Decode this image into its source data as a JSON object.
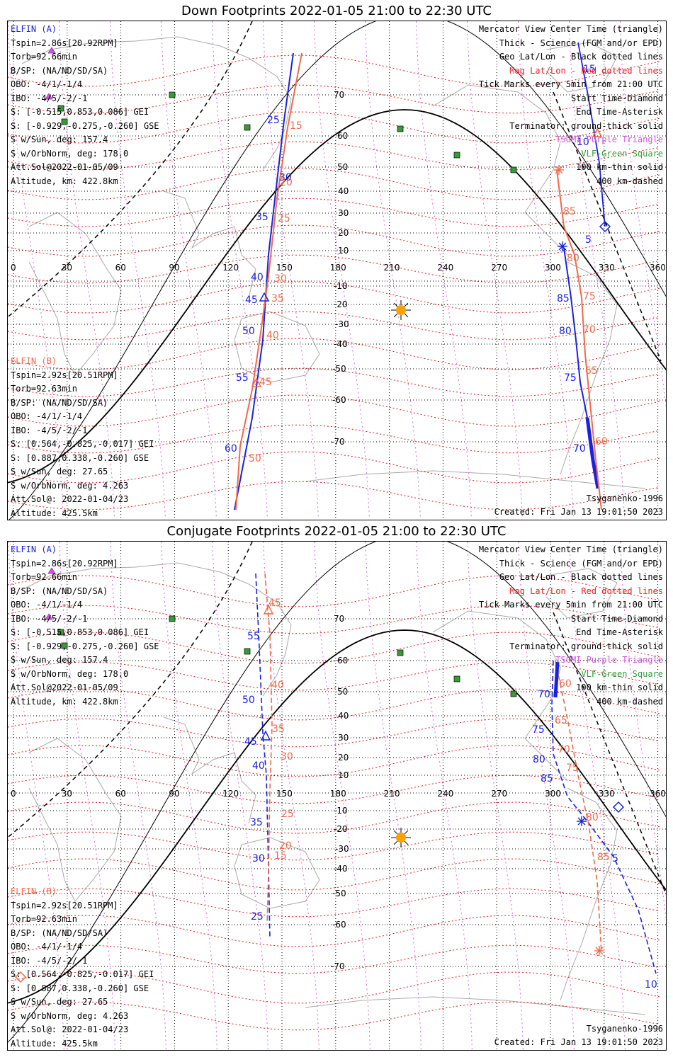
{
  "panels": [
    {
      "title": "Down Footprints 2022-01-05 21:00 to 22:30 UTC",
      "elfin_a": {
        "label": "ELFIN (A)",
        "lines": [
          "Tspin=2.86s[20.92RPM]",
          "Torb=92.66min",
          "B/SP: (NA/ND/SD/SA)",
          "OBO: -4/1/-1/4",
          "IBO: -4/5/-2/-1",
          "S: [-0.515,0.853,0.086] GEI",
          "S: [-0.929,-0.275,-0.260] GSE",
          "S w/Sun, deg: 157.4",
          "S w/OrbNorm, deg: 178.0",
          "Att.Sol@2022-01-05/09",
          "Altitude, km: 422.8km"
        ]
      },
      "elfin_b": {
        "label": "ELFIN (B)",
        "lines": [
          "Tspin=2.92s[20.51RPM]",
          "Torb=92.63min",
          "B/SP: (NA/ND/SD/SA)",
          "OBO: -4/1/-1/4",
          "IBO: -4/5/-2/-1",
          "S: [0.564,-0.825,-0.017] GEI",
          "S: [0.887,0.338,-0.260] GSE",
          "S w/Sun, deg: 27.65",
          "S w/OrbNorm, deg: 4.263",
          "Att.Sol@: 2022-01-04/23",
          "Altitude: 425.5km"
        ]
      },
      "model": "Tsyganenko-1996",
      "created": "Created: Fri Jan 13 19:01:50 2023"
    },
    {
      "title": "Conjugate Footprints 2022-01-05 21:00 to 22:30 UTC",
      "elfin_a": {
        "label": "ELFIN (A)",
        "lines": [
          "Tspin=2.86s[20.92RPM]",
          "Torb=92.66min",
          "B/SP: (NA/ND/SD/SA)",
          "OBO: -4/1/-1/4",
          "IBO: -4/5/-2/-1",
          "S: [-0.515,0.853,0.086] GEI",
          "S: [-0.929,-0.275,-0.260] GSE",
          "S w/Sun, deg: 157.4",
          "S w/OrbNorm, deg: 178.0",
          "Att.Sol@2022-01-05/09",
          "Altitude, km: 422.8km"
        ]
      },
      "elfin_b": {
        "label": "ELFIN (B)",
        "lines": [
          "Tspin=2.92s[20.51RPM]",
          "Torb=92.63min",
          "B/SP: (NA/ND/SD/SA)",
          "OBO: -4/1/-1/4",
          "IBO: -4/5/-2/-1",
          "S: [0.564,-0.825,-0.017] GEI",
          "S: [0.887,0.338,-0.260] GSE",
          "S w/Sun, deg: 27.65",
          "S w/OrbNorm, deg: 4.263",
          "Att.Sol@: 2022-01-04/23",
          "Altitude: 425.5km"
        ]
      },
      "model": "Tsyganenko-1996",
      "created": "Created: Fri Jan 13 19:01:50 2023"
    }
  ],
  "legend": [
    {
      "text": "Mercator View Center Time (triangle)",
      "color": "#000000"
    },
    {
      "text": "Thick - Science (FGM and/or EPD)",
      "color": "#000000"
    },
    {
      "text": "Geo Lat/Lon - Black dotted lines",
      "color": "#000000"
    },
    {
      "text": "Mag Lat/Lon - Red dotted lines",
      "color": "#e8202a"
    },
    {
      "text": "Tick Marks every 5min from 21:00 UTC",
      "color": "#000000"
    },
    {
      "text": "Start Time-Diamond",
      "color": "#000000"
    },
    {
      "text": "End Time-Asterisk",
      "color": "#000000"
    },
    {
      "text": "Terminator: ground-thick solid",
      "color": "#000000"
    },
    {
      "text": "TSGMI-Purple Triangle",
      "color": "#cc55dd"
    },
    {
      "text": "VLF-Green Square",
      "color": "#3a9a3a"
    },
    {
      "text": "100 km-thin solid",
      "color": "#000000"
    },
    {
      "text": "400 km-dashed",
      "color": "#000000"
    }
  ],
  "lon_ticks": [
    "0",
    "30",
    "60",
    "90",
    "120",
    "150",
    "180",
    "210",
    "240",
    "270",
    "300",
    "330",
    "360"
  ],
  "lat_ticks": [
    "70",
    "60",
    "50",
    "40",
    "30",
    "20",
    "10",
    "-10",
    "-20",
    "-30",
    "-40",
    "-50",
    "-60",
    "-70"
  ],
  "colors": {
    "elfin_a": "#1a22dd",
    "elfin_b": "#f06a4a",
    "mag_grid": "#e01818",
    "geo_grid": "#000000",
    "mag_meridian": "#dd66dd",
    "coast": "#aaaaaa",
    "vlf": "#3a9a3a",
    "sun": "#f5a300"
  },
  "track_labels": {
    "down": {
      "a": [
        "5",
        "10",
        "15",
        "25",
        "30",
        "35",
        "40",
        "45",
        "50",
        "55",
        "60",
        "70",
        "75",
        "80",
        "85"
      ],
      "b": [
        "15",
        "20",
        "25",
        "30",
        "35",
        "40",
        "45",
        "50",
        "60",
        "65",
        "70",
        "75",
        "80",
        "85"
      ]
    },
    "conj": {
      "a": [
        "5",
        "10",
        "25",
        "30",
        "35",
        "40",
        "45",
        "50",
        "55",
        "70",
        "75",
        "80",
        "85"
      ],
      "b": [
        "15",
        "20",
        "25",
        "30",
        "35",
        "40",
        "45",
        "60",
        "65",
        "70",
        "75",
        "80",
        "85"
      ]
    }
  }
}
